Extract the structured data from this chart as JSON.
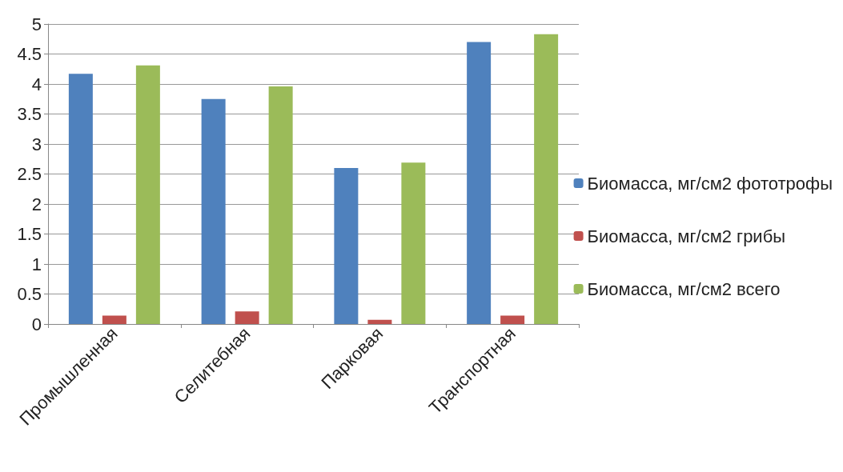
{
  "chart_data": {
    "type": "bar",
    "categories": [
      "Промышленная",
      "Селитебная",
      "Парковая",
      "Транспортная"
    ],
    "series": [
      {
        "name": "Биомасса, мг/см2 фототрофы",
        "color": "#4f81bd",
        "values": [
          4.17,
          3.75,
          2.6,
          4.7
        ]
      },
      {
        "name": "Биомасса, мг/см2 грибы",
        "color": "#c0504d",
        "values": [
          0.14,
          0.21,
          0.07,
          0.14
        ]
      },
      {
        "name": "Биомасса, мг/см2 всего",
        "color": "#9bbb59",
        "values": [
          4.31,
          3.96,
          2.69,
          4.83
        ]
      }
    ],
    "ylim": [
      0,
      5
    ],
    "yticks": [
      0,
      0.5,
      1,
      1.5,
      2,
      2.5,
      3,
      3.5,
      4,
      4.5,
      5
    ],
    "grid": "y",
    "legend": "right"
  }
}
